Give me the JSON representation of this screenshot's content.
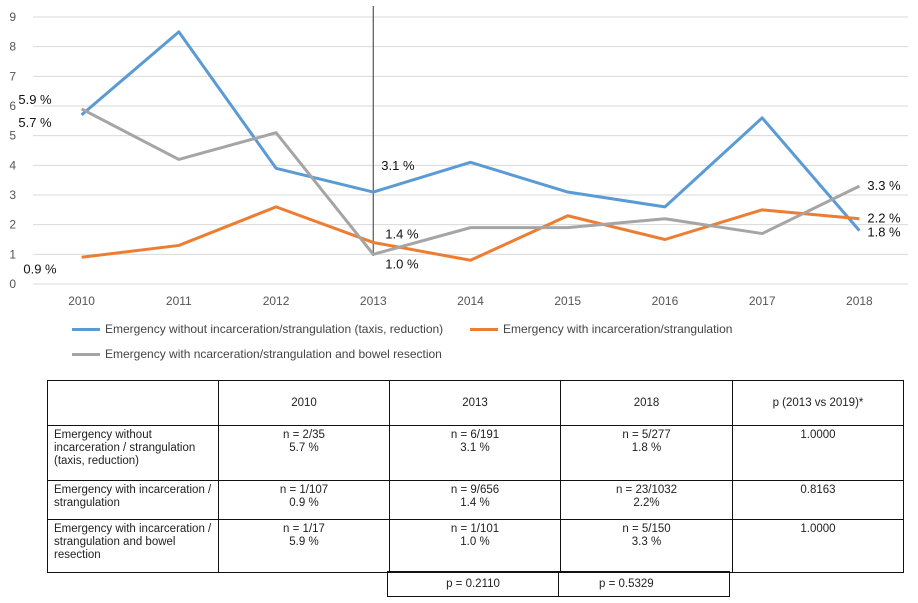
{
  "chart_data": {
    "type": "line",
    "categories": [
      "2010",
      "2011",
      "2012",
      "2013",
      "2014",
      "2015",
      "2016",
      "2017",
      "2018"
    ],
    "ylim": [
      0,
      9
    ],
    "yticks": [
      0,
      1,
      2,
      3,
      4,
      5,
      6,
      7,
      8,
      9
    ],
    "series": [
      {
        "name": "Emergency without incarceration/strangulation (taxis, reduction)",
        "color": "#5b9bd5",
        "values": [
          5.7,
          8.5,
          3.9,
          3.1,
          4.1,
          3.1,
          2.6,
          5.6,
          1.8
        ]
      },
      {
        "name": "Emergency with incarceration/strangulation",
        "color": "#ed7d31",
        "values": [
          0.9,
          1.3,
          2.6,
          1.4,
          0.8,
          2.3,
          1.5,
          2.5,
          2.2
        ]
      },
      {
        "name": "Emergency with ncarceration/strangulation and bowel resection",
        "color": "#a5a5a5",
        "values": [
          5.9,
          4.2,
          5.1,
          1.0,
          1.9,
          1.9,
          2.2,
          1.7,
          3.3
        ]
      }
    ],
    "marker_line": "2013",
    "annotations": [
      {
        "text": "5.9 %",
        "series": 2,
        "index": 0
      },
      {
        "text": "5.7 %",
        "series": 0,
        "index": 0
      },
      {
        "text": "0.9 %",
        "series": 1,
        "index": 0
      },
      {
        "text": "3.1 %",
        "series": 0,
        "index": 3
      },
      {
        "text": "1.4 %",
        "series": 1,
        "index": 3
      },
      {
        "text": "1.0 %",
        "series": 2,
        "index": 3
      },
      {
        "text": "3.3 %",
        "series": 2,
        "index": 8
      },
      {
        "text": "2.2 %",
        "series": 1,
        "index": 8
      },
      {
        "text": "1.8 %",
        "series": 0,
        "index": 8
      }
    ]
  },
  "table": {
    "headers": [
      "",
      "2010",
      "2013",
      "2018",
      "p (2013 vs 2019)*"
    ],
    "rows": [
      {
        "label": "Emergency without incarceration / strangulation (taxis, reduction)",
        "c2010_n": "n = 2/35",
        "c2010_p": "5.7 %",
        "c2013_n": "n = 6/191",
        "c2013_p": "3.1 %",
        "c2018_n": "n = 5/277",
        "c2018_p": "1.8 %",
        "pval": "1.0000"
      },
      {
        "label": "Emergency with incarceration / strangulation",
        "c2010_n": "n = 1/107",
        "c2010_p": "0.9 %",
        "c2013_n": "n = 9/656",
        "c2013_p": "1.4 %",
        "c2018_n": "n = 23/1032",
        "c2018_p": "2.2%",
        "pval": "0.8163"
      },
      {
        "label": "Emergency with incarceration / strangulation and bowel resection",
        "c2010_n": "n = 1/17",
        "c2010_p": "5.9 %",
        "c2013_n": "n = 1/101",
        "c2013_p": "1.0 %",
        "c2018_n": "n = 5/150",
        "c2018_p": "3.3 %",
        "pval": "1.0000"
      }
    ],
    "p_2013": "p = 0.2110",
    "p_2018": "p = 0.5329"
  }
}
